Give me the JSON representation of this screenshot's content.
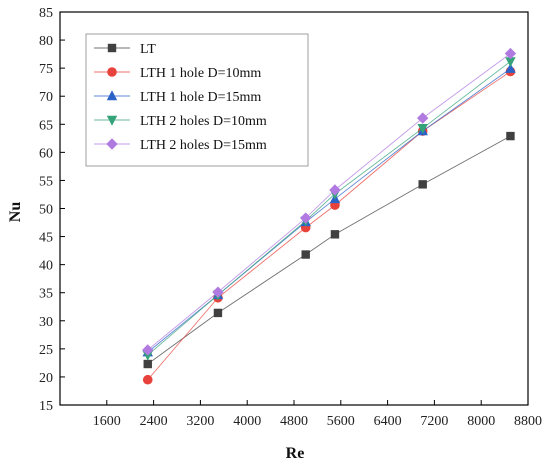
{
  "chart_data": {
    "type": "line",
    "xlabel": "Re",
    "ylabel": "Nu",
    "xlim": [
      800,
      8800
    ],
    "ylim": [
      15,
      85
    ],
    "xticks": [
      1600,
      2400,
      3200,
      4000,
      4800,
      5600,
      6400,
      7200,
      8000,
      8800
    ],
    "yticks": [
      15,
      20,
      25,
      30,
      35,
      40,
      45,
      50,
      55,
      60,
      65,
      70,
      75,
      80,
      85
    ],
    "grid": false,
    "legend_position": "top-left",
    "series": [
      {
        "name": "LT",
        "color": "#404040",
        "marker": "square",
        "x": [
          2300,
          3500,
          5000,
          5500,
          7000,
          8500
        ],
        "y": [
          22.3,
          31.4,
          41.8,
          45.4,
          54.3,
          62.9
        ]
      },
      {
        "name": "LTH 1 hole D=10mm",
        "color": "#e8423c",
        "marker": "circle",
        "x": [
          2300,
          3500,
          5000,
          5500,
          7000,
          8500
        ],
        "y": [
          19.5,
          34.1,
          46.6,
          50.6,
          63.8,
          74.4
        ]
      },
      {
        "name": "LTH 1 hole D=15mm",
        "color": "#2a62c8",
        "marker": "triangle-up",
        "x": [
          2300,
          3500,
          5000,
          5500,
          7000,
          8500
        ],
        "y": [
          24.4,
          34.6,
          47.6,
          51.7,
          63.8,
          74.9
        ]
      },
      {
        "name": "LTH 2 holes D=10mm",
        "color": "#35a37a",
        "marker": "triangle-down",
        "x": [
          2300,
          3500,
          5000,
          5500,
          7000,
          8500
        ],
        "y": [
          23.9,
          34.6,
          47.8,
          52.6,
          64.3,
          76.2
        ]
      },
      {
        "name": "LTH 2 holes D=15mm",
        "color": "#b07ae0",
        "marker": "diamond",
        "x": [
          2300,
          3500,
          5000,
          5500,
          7000,
          8500
        ],
        "y": [
          24.8,
          35.1,
          48.3,
          53.3,
          66.1,
          77.6
        ]
      }
    ]
  }
}
